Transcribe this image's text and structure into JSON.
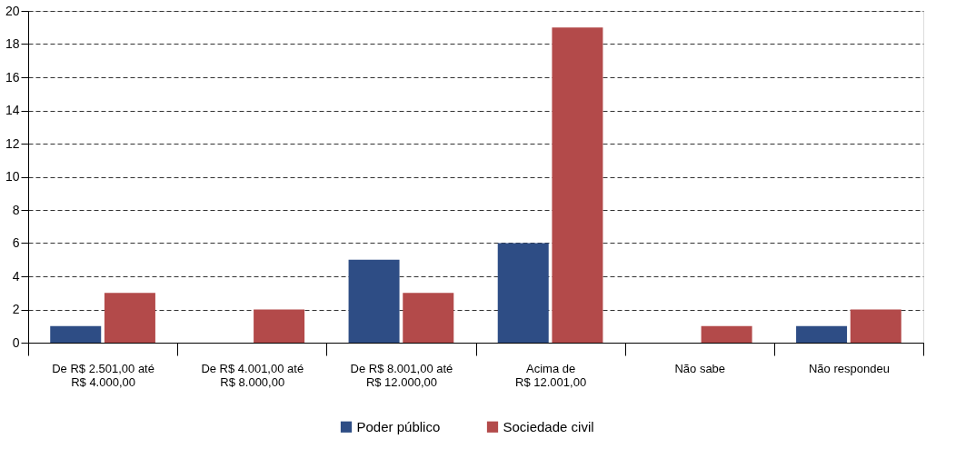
{
  "chart_data": {
    "type": "bar",
    "categories": [
      "De R$ 2.501,00 até\nR$ 4.000,00",
      "De R$ 4.001,00 até\nR$ 8.000,00",
      "De R$ 8.001,00 até\nR$ 12.000,00",
      "Acima de\nR$ 12.001,00",
      "Não sabe",
      "Não respondeu"
    ],
    "series": [
      {
        "name": "Poder público",
        "color": "#2e4d85",
        "values": [
          1,
          0,
          5,
          6,
          0,
          1
        ]
      },
      {
        "name": "Sociedade civil",
        "color": "#b34a4a",
        "values": [
          3,
          2,
          3,
          19,
          1,
          2
        ]
      }
    ],
    "ylim": [
      0,
      20
    ],
    "yticks": [
      0,
      2,
      4,
      6,
      8,
      10,
      12,
      14,
      16,
      18,
      20
    ],
    "grid": "y",
    "legend": "bottom"
  }
}
